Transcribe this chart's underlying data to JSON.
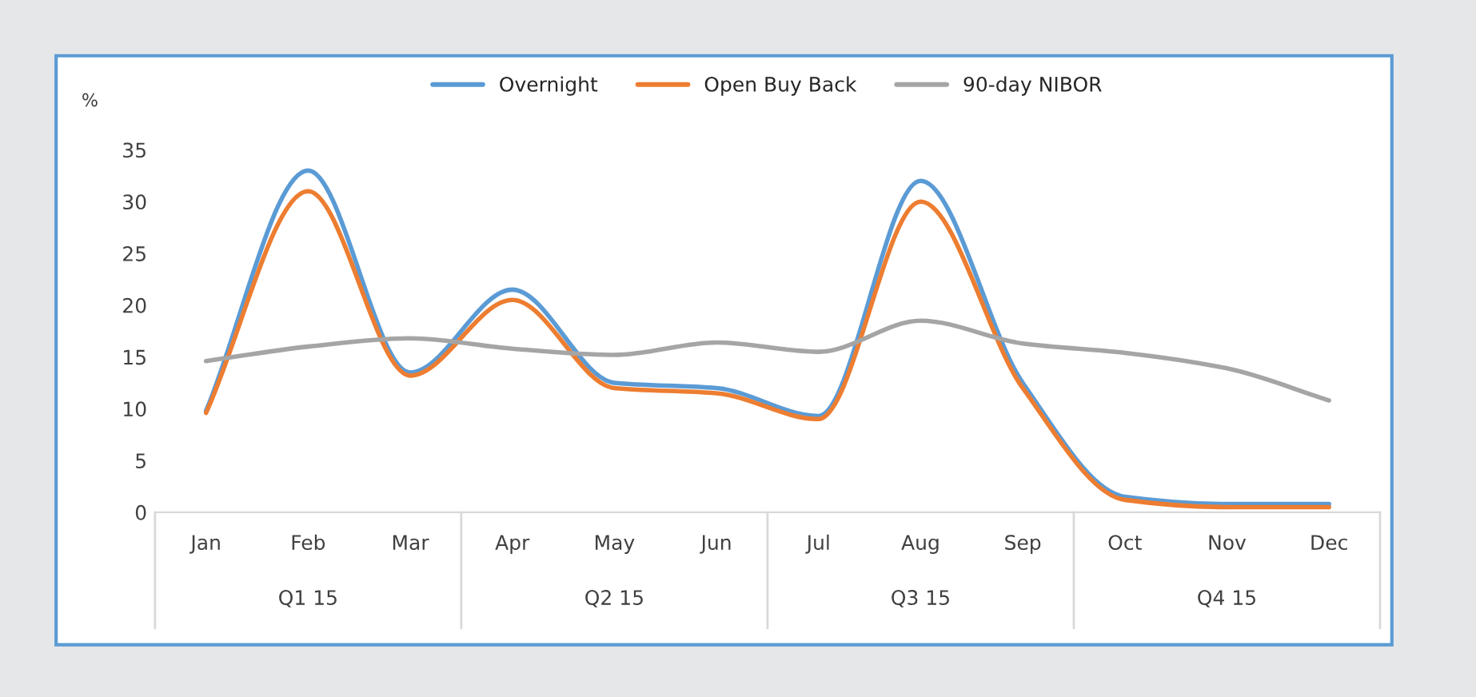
{
  "chart_data": {
    "type": "line",
    "ylabel": "%",
    "categories": [
      "Jan",
      "Feb",
      "Mar",
      "Apr",
      "May",
      "Jun",
      "Jul",
      "Aug",
      "Sep",
      "Oct",
      "Nov",
      "Dec"
    ],
    "series": [
      {
        "name": "Overnight",
        "color": "#5b9bd5",
        "values": [
          9.8,
          33,
          13.5,
          21.5,
          12.5,
          12,
          9.3,
          32,
          12.5,
          1.5,
          0.8,
          0.8
        ]
      },
      {
        "name": "Open Buy Back",
        "color": "#ed7d31",
        "values": [
          9.6,
          31,
          13.2,
          20.5,
          12,
          11.5,
          9,
          30,
          12,
          1.2,
          0.5,
          0.5
        ]
      },
      {
        "name": "90-day NIBOR",
        "color": "#a5a5a5",
        "values": [
          14.6,
          16,
          16.8,
          15.8,
          15.2,
          16.4,
          15.5,
          18.5,
          16.3,
          15.4,
          13.9,
          10.8
        ]
      }
    ],
    "ylim": [
      0,
      35
    ],
    "yticks": [
      0,
      5,
      10,
      15,
      20,
      25,
      30,
      35
    ],
    "annotations": [
      "Q1 15",
      "Q2 15",
      "Q3 15",
      "Q4 15"
    ],
    "grid": false,
    "legend": "top",
    "marker": "none",
    "line_style": "solid"
  }
}
